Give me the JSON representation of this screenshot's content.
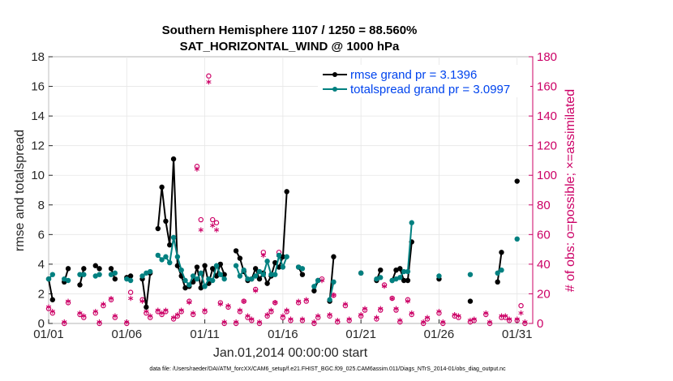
{
  "chart_data": {
    "type": "line",
    "title": "Southern Hemisphere 1107 / 1250 = 88.560%",
    "subtitle": "SAT_HORIZONTAL_WIND @ 1000 hPa",
    "xlabel": "Jan.01,2014 00:00:00 start",
    "ylabel": "rmse and totalspread",
    "y2label": "# of obs: o=possible; ×=assimilated",
    "footnote": "data file: /Users/raeder/DAI/ATM_forcXX/CAM6_setup/f.e21.FHIST_BGC.f09_025.CAM6assim.011/Diags_NTrS_2014-01/obs_diag_output.nc",
    "xlim": [
      1,
      32
    ],
    "ylim": [
      0,
      18
    ],
    "y2lim": [
      0,
      180
    ],
    "x_ticks": [
      1,
      6,
      11,
      16,
      21,
      26,
      31
    ],
    "x_tick_labels": [
      "01/01",
      "01/06",
      "01/11",
      "01/16",
      "01/21",
      "01/26",
      "01/31"
    ],
    "y_ticks": [
      0,
      2,
      4,
      6,
      8,
      10,
      12,
      14,
      16,
      18
    ],
    "y2_ticks": [
      0,
      20,
      40,
      60,
      80,
      100,
      120,
      140,
      160,
      180
    ],
    "legend_position": "top-right",
    "series": [
      {
        "name": "rmse grand pr = 3.1396",
        "color": "#000000",
        "segments": [
          [
            [
              1.0,
              3.0
            ],
            [
              1.25,
              1.6
            ]
          ],
          [
            [
              2.0,
              2.8
            ],
            [
              2.25,
              3.7
            ]
          ],
          [
            [
              3.0,
              2.6
            ],
            [
              3.25,
              3.7
            ]
          ],
          [
            [
              4.0,
              3.9
            ],
            [
              4.25,
              3.7
            ]
          ],
          [
            [
              5.0,
              3.7
            ],
            [
              5.25,
              3.0
            ]
          ],
          [
            [
              6.0,
              3.1
            ],
            [
              6.25,
              3.2
            ]
          ],
          [
            [
              7.0,
              3.0
            ],
            [
              7.25,
              1.1
            ],
            [
              7.5,
              3.4
            ]
          ],
          [
            [
              8.0,
              6.4
            ],
            [
              8.25,
              9.2
            ],
            [
              8.5,
              6.9
            ],
            [
              8.75,
              5.3
            ],
            [
              9.0,
              11.1
            ],
            [
              9.25,
              3.9
            ],
            [
              9.5,
              3.2
            ],
            [
              9.75,
              2.4
            ],
            [
              10.0,
              2.5
            ],
            [
              10.25,
              2.8
            ],
            [
              10.5,
              3.8
            ],
            [
              10.75,
              2.4
            ],
            [
              11.0,
              3.9
            ],
            [
              11.25,
              2.7
            ],
            [
              11.5,
              3.7
            ],
            [
              11.75,
              3.2
            ],
            [
              12.0,
              4.0
            ],
            [
              12.25,
              3.3
            ]
          ],
          [
            [
              13.0,
              4.9
            ],
            [
              13.25,
              4.4
            ],
            [
              13.5,
              3.5
            ],
            [
              13.75,
              2.9
            ],
            [
              14.0,
              3.0
            ],
            [
              14.25,
              3.7
            ],
            [
              14.5,
              3.0
            ],
            [
              14.75,
              3.4
            ],
            [
              15.0,
              2.7
            ],
            [
              15.25,
              3.2
            ],
            [
              15.5,
              4.1
            ],
            [
              15.75,
              3.8
            ],
            [
              16.0,
              4.5
            ],
            [
              16.25,
              8.9
            ]
          ],
          [
            [
              17.0,
              3.8
            ],
            [
              17.25,
              3.3
            ]
          ],
          [
            [
              18.0,
              2.2
            ],
            [
              18.25,
              2.9
            ]
          ],
          [
            [
              19.0,
              1.5
            ],
            [
              19.25,
              4.5
            ]
          ],
          [
            [
              21.0,
              3.4
            ]
          ],
          [
            [
              22.0,
              2.9
            ],
            [
              22.25,
              3.6
            ]
          ],
          [
            [
              23.0,
              2.9
            ],
            [
              23.25,
              3.6
            ],
            [
              23.5,
              3.7
            ],
            [
              23.75,
              2.9
            ],
            [
              24.0,
              2.9
            ],
            [
              24.25,
              5.5
            ]
          ],
          [
            [
              26.0,
              3.0
            ]
          ],
          [
            [
              28.0,
              1.5
            ]
          ],
          [
            [
              29.75,
              2.8
            ],
            [
              30.0,
              4.8
            ]
          ],
          [
            [
              31.0,
              9.6
            ]
          ]
        ]
      },
      {
        "name": "totalspread grand pr = 3.0997",
        "color": "#008080",
        "segments": [
          [
            [
              1.0,
              3.0
            ],
            [
              1.25,
              3.3
            ]
          ],
          [
            [
              2.0,
              3.0
            ],
            [
              2.25,
              2.9
            ]
          ],
          [
            [
              3.0,
              3.3
            ],
            [
              3.25,
              3.3
            ]
          ],
          [
            [
              4.0,
              3.2
            ],
            [
              4.25,
              3.3
            ]
          ],
          [
            [
              5.0,
              3.3
            ],
            [
              5.25,
              3.4
            ]
          ],
          [
            [
              6.0,
              3.0
            ],
            [
              6.25,
              2.9
            ]
          ],
          [
            [
              7.0,
              3.2
            ],
            [
              7.25,
              3.4
            ],
            [
              7.5,
              3.5
            ]
          ],
          [
            [
              8.0,
              4.6
            ],
            [
              8.25,
              4.3
            ],
            [
              8.5,
              4.5
            ],
            [
              8.75,
              4.1
            ],
            [
              9.0,
              5.8
            ],
            [
              9.25,
              4.5
            ],
            [
              9.5,
              3.6
            ],
            [
              9.75,
              2.9
            ],
            [
              10.0,
              2.6
            ],
            [
              10.25,
              3.2
            ],
            [
              10.5,
              3.0
            ],
            [
              10.75,
              3.4
            ],
            [
              11.0,
              2.5
            ],
            [
              11.25,
              3.0
            ],
            [
              11.5,
              2.9
            ],
            [
              11.75,
              3.9
            ],
            [
              12.0,
              3.3
            ],
            [
              12.25,
              3.0
            ]
          ],
          [
            [
              13.0,
              3.9
            ],
            [
              13.25,
              3.2
            ],
            [
              13.5,
              3.6
            ],
            [
              13.75,
              3.0
            ],
            [
              14.0,
              3.0
            ],
            [
              14.25,
              3.2
            ],
            [
              14.5,
              3.5
            ],
            [
              14.75,
              3.3
            ],
            [
              15.0,
              4.2
            ],
            [
              15.25,
              3.3
            ],
            [
              15.5,
              3.3
            ],
            [
              15.75,
              4.6
            ],
            [
              16.0,
              3.8
            ],
            [
              16.25,
              4.5
            ]
          ],
          [
            [
              17.0,
              3.8
            ],
            [
              17.25,
              3.7
            ]
          ],
          [
            [
              18.0,
              2.5
            ],
            [
              18.25,
              2.9
            ]
          ],
          [
            [
              19.0,
              1.6
            ],
            [
              19.25,
              2.8
            ]
          ],
          [
            [
              21.0,
              3.4
            ]
          ],
          [
            [
              22.0,
              3.0
            ],
            [
              22.25,
              3.1
            ]
          ],
          [
            [
              23.0,
              2.9
            ],
            [
              23.25,
              3.0
            ],
            [
              23.5,
              3.1
            ],
            [
              23.75,
              3.5
            ],
            [
              24.0,
              3.5
            ],
            [
              24.25,
              6.8
            ]
          ],
          [
            [
              26.0,
              3.2
            ]
          ],
          [
            [
              28.0,
              3.3
            ]
          ],
          [
            [
              29.75,
              3.4
            ],
            [
              30.0,
              3.6
            ]
          ],
          [
            [
              31.0,
              5.7
            ]
          ]
        ]
      }
    ],
    "obs_possible": {
      "name": "possible",
      "marker": "o",
      "color": "#cc0066",
      "points": [
        [
          1.0,
          10
        ],
        [
          1.25,
          7
        ],
        [
          2.0,
          0
        ],
        [
          2.25,
          14
        ],
        [
          3.0,
          6
        ],
        [
          3.25,
          4
        ],
        [
          4.0,
          7
        ],
        [
          4.25,
          0
        ],
        [
          4.5,
          12
        ],
        [
          5.0,
          16
        ],
        [
          5.25,
          4
        ],
        [
          6.0,
          0
        ],
        [
          6.25,
          21
        ],
        [
          7.0,
          16
        ],
        [
          7.25,
          7
        ],
        [
          7.5,
          4
        ],
        [
          8.0,
          8
        ],
        [
          8.25,
          6
        ],
        [
          8.5,
          8
        ],
        [
          9.0,
          3
        ],
        [
          9.25,
          5
        ],
        [
          9.5,
          8
        ],
        [
          10.0,
          15
        ],
        [
          10.25,
          6
        ],
        [
          10.5,
          106
        ],
        [
          10.75,
          70
        ],
        [
          11.0,
          8
        ],
        [
          11.25,
          167
        ],
        [
          11.5,
          70
        ],
        [
          11.75,
          68
        ],
        [
          12.0,
          14
        ],
        [
          12.25,
          0
        ],
        [
          12.5,
          11
        ],
        [
          13.0,
          0
        ],
        [
          13.25,
          8
        ],
        [
          13.5,
          15
        ],
        [
          13.75,
          4
        ],
        [
          14.0,
          2
        ],
        [
          14.25,
          23
        ],
        [
          14.5,
          0
        ],
        [
          14.75,
          48
        ],
        [
          15.0,
          5
        ],
        [
          15.25,
          8
        ],
        [
          15.5,
          14
        ],
        [
          15.75,
          48
        ],
        [
          16.0,
          4
        ],
        [
          16.25,
          8
        ],
        [
          16.5,
          2
        ],
        [
          17.0,
          14
        ],
        [
          17.25,
          2
        ],
        [
          17.5,
          15
        ],
        [
          18.0,
          0
        ],
        [
          18.25,
          4
        ],
        [
          18.5,
          30
        ],
        [
          19.0,
          5
        ],
        [
          19.25,
          19
        ],
        [
          19.5,
          1
        ],
        [
          20.0,
          12
        ],
        [
          20.25,
          2
        ],
        [
          21.0,
          5
        ],
        [
          21.25,
          9
        ],
        [
          22.0,
          3
        ],
        [
          22.25,
          9
        ],
        [
          22.5,
          26
        ],
        [
          23.0,
          17
        ],
        [
          23.25,
          9
        ],
        [
          23.5,
          1
        ],
        [
          24.0,
          16
        ],
        [
          24.25,
          6
        ],
        [
          25.0,
          0
        ],
        [
          25.25,
          3
        ],
        [
          26.0,
          7
        ],
        [
          26.25,
          0
        ],
        [
          27.0,
          5
        ],
        [
          27.25,
          4
        ],
        [
          28.0,
          1
        ],
        [
          28.25,
          2
        ],
        [
          29.0,
          6
        ],
        [
          29.25,
          0
        ],
        [
          30.0,
          4
        ],
        [
          30.25,
          4
        ],
        [
          30.5,
          2
        ],
        [
          31.0,
          2
        ],
        [
          31.25,
          12
        ],
        [
          31.5,
          0
        ]
      ]
    },
    "obs_assimilated": {
      "name": "assimilated",
      "marker": "×",
      "color": "#cc0066",
      "points": [
        [
          1.0,
          10
        ],
        [
          1.25,
          7
        ],
        [
          2.0,
          0
        ],
        [
          2.25,
          14
        ],
        [
          3.0,
          6
        ],
        [
          3.25,
          4
        ],
        [
          4.0,
          7
        ],
        [
          4.25,
          0
        ],
        [
          4.5,
          12
        ],
        [
          5.0,
          16
        ],
        [
          5.25,
          4
        ],
        [
          6.0,
          0
        ],
        [
          6.25,
          16
        ],
        [
          7.0,
          14
        ],
        [
          7.25,
          7
        ],
        [
          7.5,
          4
        ],
        [
          8.0,
          8
        ],
        [
          8.25,
          6
        ],
        [
          8.5,
          8
        ],
        [
          9.0,
          3
        ],
        [
          9.25,
          5
        ],
        [
          9.5,
          8
        ],
        [
          10.0,
          13
        ],
        [
          10.25,
          6
        ],
        [
          10.5,
          103
        ],
        [
          10.75,
          62
        ],
        [
          11.0,
          8
        ],
        [
          11.25,
          162
        ],
        [
          11.5,
          65
        ],
        [
          11.75,
          62
        ],
        [
          12.0,
          12
        ],
        [
          12.25,
          0
        ],
        [
          12.5,
          11
        ],
        [
          13.0,
          0
        ],
        [
          13.25,
          8
        ],
        [
          13.5,
          14
        ],
        [
          13.75,
          4
        ],
        [
          14.0,
          2
        ],
        [
          14.25,
          21
        ],
        [
          14.5,
          0
        ],
        [
          14.75,
          45
        ],
        [
          15.0,
          5
        ],
        [
          15.25,
          8
        ],
        [
          15.5,
          13
        ],
        [
          15.75,
          45
        ],
        [
          16.0,
          4
        ],
        [
          16.25,
          8
        ],
        [
          16.5,
          2
        ],
        [
          17.0,
          14
        ],
        [
          17.25,
          2
        ],
        [
          17.5,
          15
        ],
        [
          18.0,
          0
        ],
        [
          18.25,
          4
        ],
        [
          18.5,
          28
        ],
        [
          19.0,
          5
        ],
        [
          19.25,
          18
        ],
        [
          19.5,
          1
        ],
        [
          20.0,
          12
        ],
        [
          20.25,
          2
        ],
        [
          21.0,
          5
        ],
        [
          21.25,
          9
        ],
        [
          22.0,
          3
        ],
        [
          22.25,
          9
        ],
        [
          22.5,
          24
        ],
        [
          23.0,
          16
        ],
        [
          23.25,
          9
        ],
        [
          23.5,
          1
        ],
        [
          24.0,
          14
        ],
        [
          24.25,
          6
        ],
        [
          25.0,
          0
        ],
        [
          25.25,
          3
        ],
        [
          26.0,
          7
        ],
        [
          26.25,
          0
        ],
        [
          27.0,
          5
        ],
        [
          27.25,
          4
        ],
        [
          28.0,
          1
        ],
        [
          28.25,
          2
        ],
        [
          29.0,
          6
        ],
        [
          29.25,
          0
        ],
        [
          30.0,
          4
        ],
        [
          30.25,
          4
        ],
        [
          30.5,
          2
        ],
        [
          31.0,
          2
        ],
        [
          31.25,
          6
        ],
        [
          31.5,
          0
        ]
      ]
    }
  }
}
